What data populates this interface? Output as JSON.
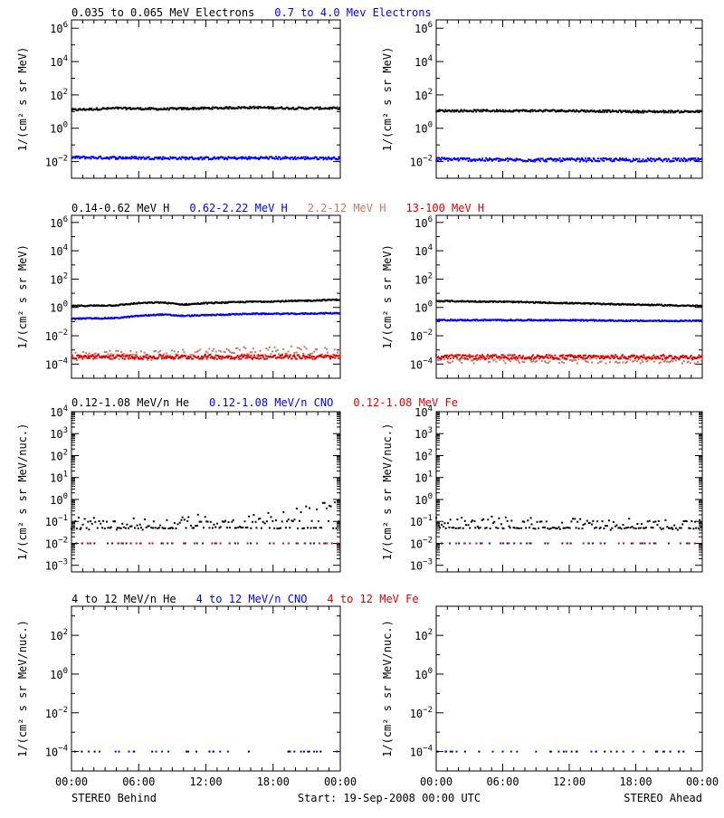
{
  "colors": {
    "black": "#000000",
    "blue": "#0000ff",
    "brown": "#c87860",
    "red": "#e00000"
  },
  "footer": {
    "left": "STEREO Behind",
    "center": "Start: 19-Sep-2008 00:00 UTC",
    "right": "STEREO Ahead"
  },
  "chart_data": [
    {
      "id": "electrons",
      "type": "scatter",
      "yscale": "log",
      "ylim_exp": [
        -3,
        6.5
      ],
      "ytick_exps": [
        -2,
        0,
        2,
        4,
        6
      ],
      "ylabel": "1/(cm² s sr MeV)",
      "x_ticks": [
        "00:00",
        "06:00",
        "12:00",
        "18:00",
        "00:00"
      ],
      "xlim_hours": [
        0,
        24
      ],
      "legend": [
        {
          "label": "0.035 to 0.065 MeV Electrons",
          "color": "#000000"
        },
        {
          "label": "0.7 to 4.0 Mev Electrons",
          "color": "#0000ff"
        }
      ],
      "behind": [
        {
          "name": "0.035 to 0.065 MeV Electrons",
          "color": "#000000",
          "style": "dense",
          "x": [
            0,
            4,
            8,
            12,
            16,
            20,
            24
          ],
          "y": [
            1.1,
            1.2,
            1.15,
            1.2,
            1.25,
            1.2,
            1.2
          ],
          "noise": 0.06
        },
        {
          "name": "0.7 to 4.0 Mev Electrons",
          "color": "#0000ff",
          "style": "dense",
          "x": [
            0,
            6,
            12,
            18,
            24
          ],
          "y": [
            -1.75,
            -1.78,
            -1.8,
            -1.78,
            -1.8
          ],
          "noise": 0.08
        }
      ],
      "ahead": [
        {
          "name": "0.035 to 0.065 MeV Electrons",
          "color": "#000000",
          "style": "dense",
          "x": [
            0,
            6,
            12,
            18,
            24
          ],
          "y": [
            1.05,
            1.05,
            1.05,
            1.0,
            1.0
          ],
          "noise": 0.06
        },
        {
          "name": "0.7 to 4.0 Mev Electrons",
          "color": "#0000ff",
          "style": "dense",
          "x": [
            0,
            6,
            12,
            18,
            24
          ],
          "y": [
            -1.85,
            -1.9,
            -1.9,
            -1.9,
            -1.9
          ],
          "noise": 0.1
        }
      ]
    },
    {
      "id": "protons",
      "type": "scatter",
      "yscale": "log",
      "ylim_exp": [
        -5,
        6.5
      ],
      "ytick_exps": [
        -4,
        -2,
        0,
        2,
        4,
        6
      ],
      "ylabel": "1/(cm² s sr MeV)",
      "x_ticks": [
        "00:00",
        "06:00",
        "12:00",
        "18:00",
        "00:00"
      ],
      "xlim_hours": [
        0,
        24
      ],
      "legend": [
        {
          "label": "0.14-0.62 MeV H",
          "color": "#000000"
        },
        {
          "label": "0.62-2.22 MeV H",
          "color": "#0000ff"
        },
        {
          "label": "2.2-12 MeV H",
          "color": "#c87860"
        },
        {
          "label": "13-100 MeV H",
          "color": "#e00000"
        }
      ],
      "behind": [
        {
          "name": "0.14-0.62 MeV H",
          "color": "#000000",
          "style": "dense",
          "x": [
            0,
            4,
            6,
            8,
            10,
            12,
            14,
            16,
            20,
            24
          ],
          "y": [
            0.1,
            0.15,
            0.3,
            0.35,
            0.2,
            0.3,
            0.35,
            0.4,
            0.45,
            0.55
          ],
          "noise": 0.04
        },
        {
          "name": "0.62-2.22 MeV H",
          "color": "#0000ff",
          "style": "dense",
          "x": [
            0,
            4,
            6,
            8,
            10,
            12,
            14,
            16,
            20,
            24
          ],
          "y": [
            -0.8,
            -0.75,
            -0.6,
            -0.5,
            -0.6,
            -0.55,
            -0.5,
            -0.45,
            -0.45,
            -0.4
          ],
          "noise": 0.04
        },
        {
          "name": "2.2-12 MeV H",
          "color": "#c87860",
          "style": "sparse",
          "x": [
            0,
            8,
            12,
            16,
            20,
            24
          ],
          "y": [
            -3.4,
            -3.4,
            -3.2,
            -3.1,
            -3.1,
            -3.2
          ],
          "noise": 0.35
        },
        {
          "name": "13-100 MeV H",
          "color": "#e00000",
          "style": "dense",
          "x": [
            0,
            6,
            12,
            18,
            24
          ],
          "y": [
            -3.5,
            -3.5,
            -3.5,
            -3.5,
            -3.5
          ],
          "noise": 0.15
        }
      ],
      "ahead": [
        {
          "name": "0.14-0.62 MeV H",
          "color": "#000000",
          "style": "dense",
          "x": [
            0,
            6,
            12,
            18,
            24
          ],
          "y": [
            0.45,
            0.4,
            0.3,
            0.2,
            0.1
          ],
          "noise": 0.04
        },
        {
          "name": "0.62-2.22 MeV H",
          "color": "#0000ff",
          "style": "dense",
          "x": [
            0,
            6,
            12,
            18,
            24
          ],
          "y": [
            -0.9,
            -0.9,
            -0.9,
            -0.95,
            -0.95
          ],
          "noise": 0.04
        },
        {
          "name": "2.2-12 MeV H",
          "color": "#c87860",
          "style": "sparse",
          "x": [
            0,
            6,
            12,
            18,
            24
          ],
          "y": [
            -3.7,
            -3.7,
            -3.7,
            -3.7,
            -3.7
          ],
          "noise": 0.25
        },
        {
          "name": "13-100 MeV H",
          "color": "#e00000",
          "style": "dense",
          "x": [
            0,
            6,
            12,
            18,
            24
          ],
          "y": [
            -3.5,
            -3.5,
            -3.5,
            -3.5,
            -3.5
          ],
          "noise": 0.15
        }
      ]
    },
    {
      "id": "ions-low",
      "type": "scatter",
      "yscale": "log",
      "ylim_exp": [
        -3.3,
        4
      ],
      "ytick_exps": [
        -3,
        -2,
        -1,
        0,
        1,
        2,
        3,
        4
      ],
      "ylabel": "1/(cm² s sr MeV/nuc.)",
      "x_ticks": [
        "00:00",
        "06:00",
        "12:00",
        "18:00",
        "00:00"
      ],
      "xlim_hours": [
        0,
        24
      ],
      "legend": [
        {
          "label": "0.12-1.08 MeV/n He",
          "color": "#000000"
        },
        {
          "label": "0.12-1.08 MeV/n CNO",
          "color": "#0000ff"
        },
        {
          "label": "0.12-1.08 MeV Fe",
          "color": "#e00000"
        }
      ],
      "behind": [
        {
          "name": "0.12-1.08 MeV/n He",
          "color": "#000000",
          "style": "sparse",
          "x": [
            0,
            6,
            10,
            12,
            14,
            16,
            18,
            20,
            22,
            24
          ],
          "y": [
            -1.1,
            -1.1,
            -1.0,
            -0.95,
            -1.0,
            -0.9,
            -0.8,
            -0.7,
            -0.4,
            -0.1
          ],
          "noise": 0.3
        },
        {
          "name": "0.12-1.08 MeV/n CNO",
          "color": "#0000ff",
          "style": "flat",
          "x": [
            0,
            24
          ],
          "y": [
            -2.0,
            -2.0
          ],
          "noise": 0
        },
        {
          "name": "0.12-1.08 MeV Fe",
          "color": "#e00000",
          "style": "flat",
          "x": [
            0,
            24
          ],
          "y": [
            -2.0,
            -2.0
          ],
          "noise": 0
        }
      ],
      "ahead": [
        {
          "name": "0.12-1.08 MeV/n He",
          "color": "#000000",
          "style": "sparse",
          "x": [
            0,
            6,
            12,
            18,
            24
          ],
          "y": [
            -1.1,
            -1.05,
            -1.1,
            -1.15,
            -1.15
          ],
          "noise": 0.28
        },
        {
          "name": "0.12-1.08 MeV/n CNO",
          "color": "#0000ff",
          "style": "flat",
          "x": [
            0,
            24
          ],
          "y": [
            -2.0,
            -2.0
          ],
          "noise": 0
        },
        {
          "name": "0.12-1.08 MeV Fe",
          "color": "#e00000",
          "style": "flat",
          "x": [
            0,
            24
          ],
          "y": [
            -2.0,
            -2.0
          ],
          "noise": 0
        }
      ]
    },
    {
      "id": "ions-high",
      "type": "scatter",
      "yscale": "log",
      "ylim_exp": [
        -5,
        3.5
      ],
      "ytick_exps": [
        -4,
        -2,
        0,
        2
      ],
      "ylabel": "1/(cm² s sr MeV/nuc.)",
      "x_ticks": [
        "00:00",
        "06:00",
        "12:00",
        "18:00",
        "00:00"
      ],
      "xlim_hours": [
        0,
        24
      ],
      "legend": [
        {
          "label": "4 to 12 MeV/n He",
          "color": "#000000"
        },
        {
          "label": "4 to 12 MeV/n CNO",
          "color": "#0000ff"
        },
        {
          "label": "4 to 12 MeV Fe",
          "color": "#e00000"
        }
      ],
      "behind": [
        {
          "name": "4 to 12 MeV/n He",
          "color": "#000000",
          "style": "rare",
          "x": [
            0,
            24
          ],
          "y": [
            -4.0,
            -4.0
          ],
          "noise": 0
        },
        {
          "name": "4 to 12 MeV/n CNO",
          "color": "#0000ff",
          "style": "rare",
          "x": [
            0,
            24
          ],
          "y": [
            -4.0,
            -4.0
          ],
          "noise": 0
        }
      ],
      "ahead": [
        {
          "name": "4 to 12 MeV/n He",
          "color": "#000000",
          "style": "rare",
          "x": [
            0,
            24
          ],
          "y": [
            -4.0,
            -4.0
          ],
          "noise": 0
        },
        {
          "name": "4 to 12 MeV/n CNO",
          "color": "#0000ff",
          "style": "rare",
          "x": [
            0,
            24
          ],
          "y": [
            -4.0,
            -4.0
          ],
          "noise": 0
        }
      ]
    }
  ]
}
